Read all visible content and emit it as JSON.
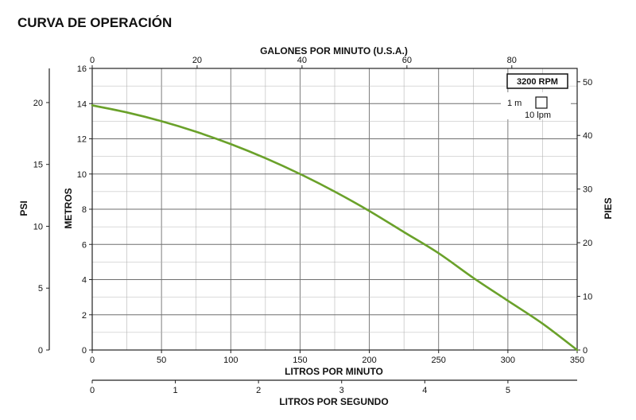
{
  "title": "CURVA DE OPERACIÓN",
  "colors": {
    "curve": "#6aa12a",
    "grid": "#9a9a9a",
    "axis": "#222222"
  },
  "chart_data": {
    "type": "line",
    "rpm_label": "3200 RPM",
    "scale_key": {
      "vertical": "1 m",
      "horizontal": "10 lpm"
    },
    "x_bottom": {
      "label": "LITROS POR MINUTO",
      "range": [
        0,
        350
      ],
      "ticks": [
        0,
        50,
        100,
        150,
        200,
        250,
        300,
        350
      ]
    },
    "x_top": {
      "label": "GALONES POR MINUTO (U.S.A.)",
      "range": [
        0,
        92.46
      ],
      "ticks": [
        0,
        20,
        40,
        60,
        80
      ]
    },
    "x_bottom2": {
      "label": "LITROS POR SEGUNDO",
      "range": [
        0,
        5.833
      ],
      "ticks": [
        0,
        1,
        2,
        3,
        4,
        5
      ]
    },
    "y_left": {
      "label": "METROS",
      "range": [
        0,
        16
      ],
      "ticks": [
        0,
        2,
        4,
        6,
        8,
        10,
        12,
        14,
        16
      ]
    },
    "y_psi": {
      "label": "PSI",
      "range": [
        0,
        22.76
      ],
      "ticks": [
        0,
        5,
        10,
        15,
        20
      ]
    },
    "y_right": {
      "label": "PIES",
      "range": [
        0,
        52.49
      ],
      "ticks": [
        0,
        10,
        20,
        30,
        40,
        50
      ]
    },
    "grid": true,
    "series": [
      {
        "x": [
          0,
          25,
          50,
          75,
          100,
          125,
          150,
          175,
          200,
          225,
          250,
          275,
          300,
          325,
          350
        ],
        "y": [
          13.9,
          13.5,
          13.0,
          12.4,
          11.7,
          10.9,
          10.0,
          9.0,
          7.9,
          6.7,
          5.5,
          4.1,
          2.8,
          1.5,
          0
        ]
      }
    ]
  }
}
